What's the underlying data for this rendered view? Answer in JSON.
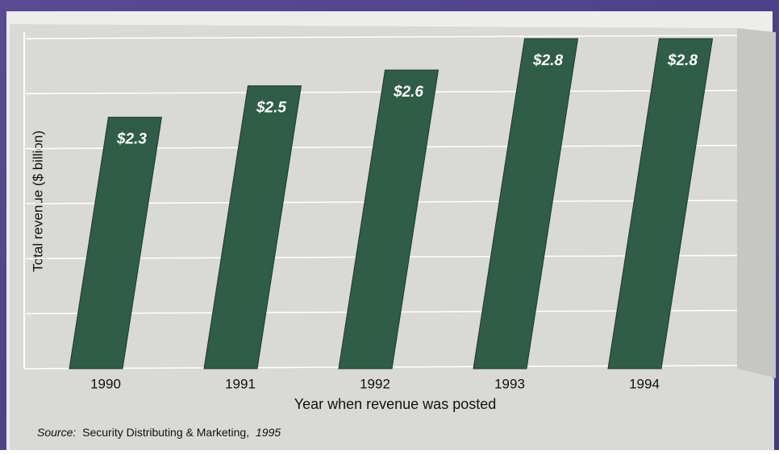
{
  "chart_data": {
    "type": "bar",
    "y_label": "Total revenue ($ billion)",
    "x_label": "Year when revenue was posted",
    "source": {
      "prefix": "Source:",
      "text": "Security Distributing & Marketing,",
      "year": "1995"
    },
    "categories": [
      "1990",
      "1991",
      "1992",
      "1993",
      "1994"
    ],
    "values": [
      2.3,
      2.5,
      2.6,
      2.8,
      2.8
    ],
    "value_labels": [
      "$2.3",
      "$2.5",
      "$2.6",
      "$2.8",
      "$2.8"
    ],
    "color": "#2f5d47",
    "ylim": [
      0.7,
      2.8
    ],
    "yticks": [
      0.7,
      1.05,
      1.4,
      1.75,
      2.1,
      2.45,
      2.8
    ],
    "grid": true
  }
}
